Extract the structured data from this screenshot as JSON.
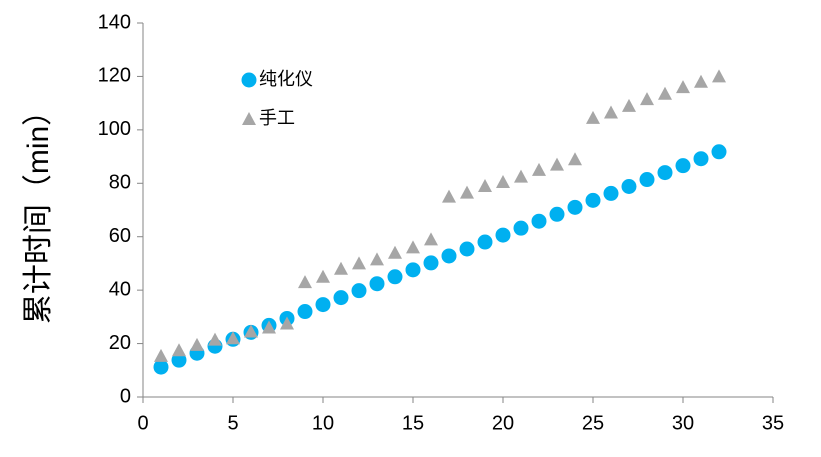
{
  "chart_data": {
    "type": "scatter",
    "y_label": "累计时间（min）",
    "xlim": [
      0,
      35
    ],
    "xticks": [
      0,
      5,
      10,
      15,
      20,
      25,
      30,
      35
    ],
    "ylim": [
      0,
      140
    ],
    "yticks": [
      0,
      20,
      40,
      60,
      80,
      100,
      120,
      140
    ],
    "grid": false,
    "legend": "top-left",
    "series": [
      {
        "name": "纯化仪",
        "color": "#00b0f0",
        "marker": "circle",
        "x": [
          1,
          2,
          3,
          4,
          5,
          6,
          7,
          8,
          9,
          10,
          11,
          12,
          13,
          14,
          15,
          16,
          17,
          18,
          19,
          20,
          21,
          22,
          23,
          24,
          25,
          26,
          27,
          28,
          29,
          30,
          31,
          32
        ],
        "values": [
          11.2,
          13.8,
          16.4,
          19,
          21.6,
          24.2,
          26.8,
          29.4,
          32,
          34.6,
          37.2,
          39.8,
          42.4,
          45,
          47.6,
          50.2,
          52.8,
          55.4,
          58,
          60.6,
          63.2,
          65.8,
          68.4,
          71,
          73.6,
          76.2,
          78.8,
          81.4,
          84,
          86.6,
          89.2,
          91.8
        ]
      },
      {
        "name": "手工",
        "color": "#a6a6a6",
        "marker": "triangle",
        "x": [
          1,
          2,
          3,
          4,
          5,
          6,
          7,
          8,
          9,
          10,
          11,
          12,
          13,
          14,
          15,
          16,
          17,
          18,
          19,
          20,
          21,
          22,
          23,
          24,
          25,
          26,
          27,
          28,
          29,
          30,
          31,
          32
        ],
        "values": [
          15.4,
          17.5,
          19.5,
          21.5,
          22,
          24.5,
          26,
          27.5,
          43,
          45,
          48,
          50,
          51.5,
          54,
          56,
          59,
          75,
          76.5,
          79,
          80.5,
          82.5,
          85,
          87,
          89,
          104.5,
          106.5,
          109,
          111.5,
          113.5,
          116,
          118,
          120
        ]
      }
    ]
  }
}
